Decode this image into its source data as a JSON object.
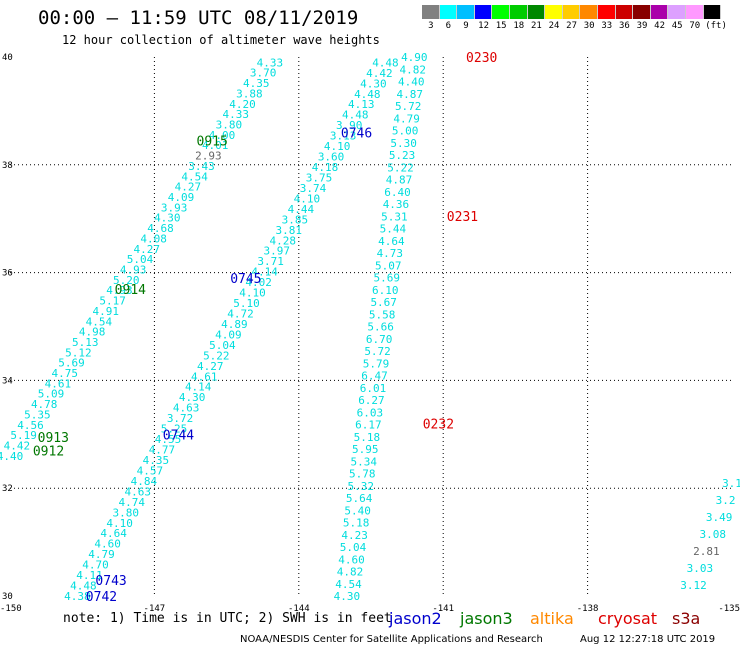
{
  "title": "00:00 – 11:59 UTC 08/11/2019",
  "subtitle": "12 hour collection of altimeter wave heights",
  "legend": {
    "unit": "(ft)",
    "bins": [
      {
        "label": "3",
        "color": "#808080"
      },
      {
        "label": "6",
        "color": "#00ffff"
      },
      {
        "label": "9",
        "color": "#00bfff"
      },
      {
        "label": "12",
        "color": "#0000ff"
      },
      {
        "label": "15",
        "color": "#00ff00"
      },
      {
        "label": "18",
        "color": "#00cc00"
      },
      {
        "label": "21",
        "color": "#008800"
      },
      {
        "label": "24",
        "color": "#ffff00"
      },
      {
        "label": "27",
        "color": "#ffcc00"
      },
      {
        "label": "30",
        "color": "#ff8800"
      },
      {
        "label": "33",
        "color": "#ff0000"
      },
      {
        "label": "36",
        "color": "#cc0000"
      },
      {
        "label": "39",
        "color": "#880000"
      },
      {
        "label": "42",
        "color": "#aa00aa"
      },
      {
        "label": "45",
        "color": "#dda0ff"
      },
      {
        "label": "70",
        "color": "#ff99ff"
      },
      {
        "label": "",
        "color": "#000000"
      }
    ]
  },
  "axes": {
    "x_ticks": [
      "-150",
      "-147",
      "-144",
      "-141",
      "-138",
      "-135"
    ],
    "y_ticks": [
      "40",
      "38",
      "36",
      "34",
      "32",
      "30"
    ],
    "lon_range": [
      -150,
      -135
    ],
    "lat_range": [
      30,
      40
    ]
  },
  "colors": {
    "swh": "#00dddd",
    "jason2": "#0000cc",
    "jason3": "#007700",
    "altika": "#ff8800",
    "cryosat": "#dd0000",
    "s3a": "#8b0000",
    "grey": "#666666"
  },
  "time_labels": [
    {
      "text": "0230",
      "lon": -140.2,
      "lat": 40.0,
      "sat": "cryosat"
    },
    {
      "text": "0231",
      "lon": -140.6,
      "lat": 37.05,
      "sat": "cryosat"
    },
    {
      "text": "0232",
      "lon": -141.1,
      "lat": 33.2,
      "sat": "cryosat"
    },
    {
      "text": "0746",
      "lon": -142.8,
      "lat": 38.6,
      "sat": "jason2"
    },
    {
      "text": "0745",
      "lon": -145.1,
      "lat": 35.9,
      "sat": "jason2"
    },
    {
      "text": "0744",
      "lon": -146.5,
      "lat": 33.0,
      "sat": "jason2"
    },
    {
      "text": "0743",
      "lon": -147.9,
      "lat": 30.3,
      "sat": "jason2"
    },
    {
      "text": "0742",
      "lon": -148.1,
      "lat": 30.0,
      "sat": "jason2"
    },
    {
      "text": "0915",
      "lon": -145.8,
      "lat": 38.45,
      "sat": "jason3"
    },
    {
      "text": "0914",
      "lon": -147.5,
      "lat": 35.7,
      "sat": "jason3"
    },
    {
      "text": "0913",
      "lon": -149.1,
      "lat": 32.95,
      "sat": "jason3"
    },
    {
      "text": "0912",
      "lon": -149.2,
      "lat": 32.7,
      "sat": "jason3"
    }
  ],
  "tracks": [
    {
      "name": "cryosat",
      "lon_start": -141.6,
      "lat_start": 40.0,
      "lon_end": -143.0,
      "lat_end": 30.0,
      "values": [
        "4.90",
        "4.82",
        "4.40",
        "4.87",
        "5.72",
        "4.79",
        "5.00",
        "5.30",
        "5.23",
        "5.22",
        "4.87",
        "6.40",
        "4.36",
        "5.31",
        "5.44",
        "4.64",
        "4.73",
        "5.07",
        "5.69",
        "6.10",
        "5.67",
        "5.58",
        "5.66",
        "6.70",
        "5.72",
        "5.79",
        "6.47",
        "6.01",
        "6.27",
        "6.03",
        "6.17",
        "5.18",
        "5.95",
        "5.34",
        "5.78",
        "5.32",
        "5.64",
        "5.40",
        "5.18",
        "4.23",
        "5.04",
        "4.60",
        "4.82",
        "4.54",
        "4.30"
      ]
    },
    {
      "name": "jason2",
      "lon_start": -142.2,
      "lat_start": 39.9,
      "lon_end": -148.6,
      "lat_end": 30.0,
      "values": [
        "4.48",
        "4.42",
        "4.30",
        "4.48",
        "4.13",
        "4.48",
        "3.90",
        "3.13",
        "4.10",
        "3.60",
        "4.18",
        "3.75",
        "3.74",
        "4.10",
        "4.44",
        "3.85",
        "3.81",
        "4.28",
        "3.97",
        "3.71",
        "4.14",
        "4.02",
        "4.10",
        "5.10",
        "4.72",
        "4.89",
        "4.09",
        "5.04",
        "5.22",
        "4.27",
        "4.61",
        "4.14",
        "4.30",
        "4.63",
        "3.72",
        "5.25",
        "4.55",
        "4.77",
        "4.35",
        "4.57",
        "4.84",
        "4.63",
        "4.74",
        "3.80",
        "4.10",
        "4.64",
        "4.60",
        "4.79",
        "4.70",
        "4.11",
        "4.48",
        "4.38"
      ]
    },
    {
      "name": "jason3",
      "lon_start": -144.6,
      "lat_start": 39.9,
      "lon_end": -150.0,
      "lat_end": 32.6,
      "values": [
        "4.33",
        "3.70",
        "4.35",
        "3.88",
        "4.20",
        "4.33",
        "3.80",
        "4.00",
        "4.01",
        "2.93",
        "3.43",
        "4.54",
        "4.27",
        "4.09",
        "3.93",
        "4.30",
        "4.68",
        "4.08",
        "4.27",
        "5.04",
        "4.93",
        "5.20",
        "4.93",
        "5.17",
        "4.91",
        "4.54",
        "4.98",
        "5.13",
        "5.12",
        "5.69",
        "4.75",
        "4.61",
        "5.09",
        "4.78",
        "5.35",
        "4.56",
        "5.19",
        "4.42",
        "4.40"
      ]
    },
    {
      "name": "east",
      "lon_start": -135.0,
      "lat_start": 32.1,
      "lon_end": -135.8,
      "lat_end": 30.2,
      "values": [
        "3.1",
        "3.2",
        "3.49",
        "3.08",
        "2.81",
        "3.03",
        "3.12"
      ]
    }
  ],
  "notes": {
    "note": "note: 1) Time is in UTC; 2) SWH is in feet"
  },
  "satellites": [
    {
      "label": "jason2",
      "color": "#0000cc",
      "x": 389
    },
    {
      "label": "jason3",
      "color": "#007700",
      "x": 460
    },
    {
      "label": "altika",
      "color": "#ff8800",
      "x": 530
    },
    {
      "label": "cryosat",
      "color": "#dd0000",
      "x": 598
    },
    {
      "label": "s3a",
      "color": "#8b0000",
      "x": 672
    }
  ],
  "credit": "NOAA/NESDIS Center for Satellite Applications and Research",
  "generated": "Aug 12 12:27:18 UTC 2019"
}
